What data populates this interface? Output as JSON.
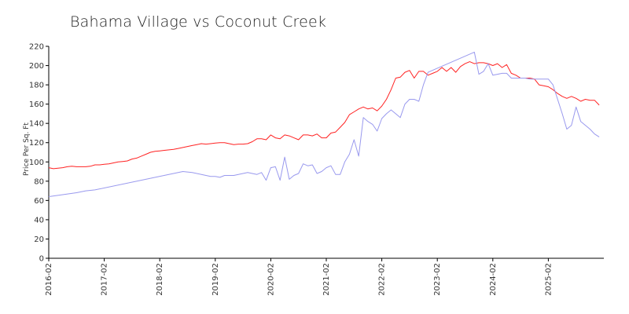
{
  "chart_data": {
    "type": "line",
    "title": "Bahama Village vs Coconut Creek",
    "ylabel": "Price Per Sq. Ft",
    "xlabel": "",
    "ylim": [
      0,
      220
    ],
    "yticks": [
      0,
      20,
      40,
      60,
      80,
      100,
      120,
      140,
      160,
      180,
      200,
      220
    ],
    "xlim": [
      "2016-02",
      "2026-02"
    ],
    "xticks": [
      "2016-02",
      "2017-02",
      "2018-02",
      "2019-02",
      "2020-02",
      "2021-02",
      "2022-02",
      "2023-02",
      "2024-02",
      "2025-02"
    ],
    "grid": false,
    "series": [
      {
        "color": "#ff2222",
        "points": [
          [
            "2016-02",
            94
          ],
          [
            "2016-03",
            93
          ],
          [
            "2016-04",
            93.5
          ],
          [
            "2016-05",
            94
          ],
          [
            "2016-06",
            95
          ],
          [
            "2016-07",
            95.5
          ],
          [
            "2016-08",
            95
          ],
          [
            "2016-09",
            95
          ],
          [
            "2016-10",
            95
          ],
          [
            "2016-11",
            95.5
          ],
          [
            "2016-12",
            97
          ],
          [
            "2017-01",
            97
          ],
          [
            "2017-02",
            97.5
          ],
          [
            "2017-03",
            98
          ],
          [
            "2017-04",
            99
          ],
          [
            "2017-05",
            100
          ],
          [
            "2017-06",
            100.5
          ],
          [
            "2017-07",
            101
          ],
          [
            "2017-08",
            103
          ],
          [
            "2017-09",
            104
          ],
          [
            "2017-10",
            106
          ],
          [
            "2017-11",
            108
          ],
          [
            "2017-12",
            110
          ],
          [
            "2018-01",
            111
          ],
          [
            "2018-02",
            111.5
          ],
          [
            "2018-03",
            112
          ],
          [
            "2018-04",
            112.5
          ],
          [
            "2018-05",
            113
          ],
          [
            "2018-06",
            114
          ],
          [
            "2018-07",
            115
          ],
          [
            "2018-08",
            116
          ],
          [
            "2018-09",
            117
          ],
          [
            "2018-10",
            118
          ],
          [
            "2018-11",
            119
          ],
          [
            "2018-12",
            118.5
          ],
          [
            "2019-01",
            119
          ],
          [
            "2019-02",
            119.5
          ],
          [
            "2019-03",
            120
          ],
          [
            "2019-04",
            120
          ],
          [
            "2019-05",
            119
          ],
          [
            "2019-06",
            118
          ],
          [
            "2019-07",
            118.5
          ],
          [
            "2019-08",
            118.5
          ],
          [
            "2019-09",
            119
          ],
          [
            "2019-10",
            121
          ],
          [
            "2019-11",
            124
          ],
          [
            "2019-12",
            124
          ],
          [
            "2020-01",
            123
          ],
          [
            "2020-02",
            128
          ],
          [
            "2020-03",
            125
          ],
          [
            "2020-04",
            124
          ],
          [
            "2020-05",
            128
          ],
          [
            "2020-06",
            127
          ],
          [
            "2020-07",
            125
          ],
          [
            "2020-08",
            123
          ],
          [
            "2020-09",
            128
          ],
          [
            "2020-10",
            128
          ],
          [
            "2020-11",
            127
          ],
          [
            "2020-12",
            129
          ],
          [
            "2021-01",
            125
          ],
          [
            "2021-02",
            125
          ],
          [
            "2021-03",
            130
          ],
          [
            "2021-04",
            131
          ],
          [
            "2021-05",
            136
          ],
          [
            "2021-06",
            141
          ],
          [
            "2021-07",
            149
          ],
          [
            "2021-08",
            152
          ],
          [
            "2021-09",
            155
          ],
          [
            "2021-10",
            157
          ],
          [
            "2021-11",
            155
          ],
          [
            "2021-12",
            156
          ],
          [
            "2022-01",
            153
          ],
          [
            "2022-02",
            158
          ],
          [
            "2022-03",
            165
          ],
          [
            "2022-04",
            175
          ],
          [
            "2022-05",
            187
          ],
          [
            "2022-06",
            188
          ],
          [
            "2022-07",
            193
          ],
          [
            "2022-08",
            195
          ],
          [
            "2022-09",
            187
          ],
          [
            "2022-10",
            194
          ],
          [
            "2022-11",
            194
          ],
          [
            "2022-12",
            190
          ],
          [
            "2023-01",
            192
          ],
          [
            "2023-02",
            194
          ],
          [
            "2023-03",
            198
          ],
          [
            "2023-04",
            194
          ],
          [
            "2023-05",
            198
          ],
          [
            "2023-06",
            193
          ],
          [
            "2023-07",
            199
          ],
          [
            "2023-08",
            202
          ],
          [
            "2023-09",
            204
          ],
          [
            "2023-10",
            202
          ],
          [
            "2023-11",
            203
          ],
          [
            "2023-12",
            203
          ],
          [
            "2024-01",
            202
          ],
          [
            "2024-02",
            200
          ],
          [
            "2024-03",
            202
          ],
          [
            "2024-04",
            198
          ],
          [
            "2024-05",
            201
          ],
          [
            "2024-06",
            192
          ],
          [
            "2024-07",
            190
          ],
          [
            "2024-08",
            187
          ],
          [
            "2024-09",
            187
          ],
          [
            "2024-10",
            187
          ],
          [
            "2024-11",
            186
          ],
          [
            "2024-12",
            180
          ],
          [
            "2025-01",
            179
          ],
          [
            "2025-02",
            178
          ],
          [
            "2025-03",
            175
          ],
          [
            "2025-04",
            171
          ],
          [
            "2025-05",
            168
          ],
          [
            "2025-06",
            166
          ],
          [
            "2025-07",
            168
          ],
          [
            "2025-08",
            166
          ],
          [
            "2025-09",
            163
          ],
          [
            "2025-10",
            165
          ],
          [
            "2025-11",
            164
          ],
          [
            "2025-12",
            164
          ],
          [
            "2026-01",
            159
          ]
        ]
      },
      {
        "color": "#9999ee",
        "points": [
          [
            "2016-02",
            64
          ],
          [
            "2016-05",
            66
          ],
          [
            "2016-08",
            68
          ],
          [
            "2016-10",
            70
          ],
          [
            "2016-12",
            71
          ],
          [
            "2018-07",
            90
          ],
          [
            "2018-09",
            89
          ],
          [
            "2018-11",
            87
          ],
          [
            "2019-01",
            85
          ],
          [
            "2019-02",
            85
          ],
          [
            "2019-03",
            84
          ],
          [
            "2019-04",
            86
          ],
          [
            "2019-05",
            86
          ],
          [
            "2019-06",
            86
          ],
          [
            "2019-09",
            89
          ],
          [
            "2019-11",
            87
          ],
          [
            "2019-12",
            89
          ],
          [
            "2020-01",
            81
          ],
          [
            "2020-02",
            94
          ],
          [
            "2020-03",
            95
          ],
          [
            "2020-04",
            81
          ],
          [
            "2020-05",
            105
          ],
          [
            "2020-06",
            82
          ],
          [
            "2020-07",
            86
          ],
          [
            "2020-08",
            88
          ],
          [
            "2020-09",
            98
          ],
          [
            "2020-10",
            96
          ],
          [
            "2020-11",
            97
          ],
          [
            "2020-12",
            88
          ],
          [
            "2021-01",
            90
          ],
          [
            "2021-02",
            94
          ],
          [
            "2021-03",
            96
          ],
          [
            "2021-04",
            87
          ],
          [
            "2021-05",
            87
          ],
          [
            "2021-06",
            100
          ],
          [
            "2021-07",
            108
          ],
          [
            "2021-08",
            123
          ],
          [
            "2021-09",
            106
          ],
          [
            "2021-10",
            146
          ],
          [
            "2021-11",
            142
          ],
          [
            "2021-12",
            139
          ],
          [
            "2022-01",
            132
          ],
          [
            "2022-02",
            145
          ],
          [
            "2022-03",
            150
          ],
          [
            "2022-04",
            154
          ],
          [
            "2022-05",
            150
          ],
          [
            "2022-06",
            146
          ],
          [
            "2022-07",
            160
          ],
          [
            "2022-08",
            165
          ],
          [
            "2022-09",
            165
          ],
          [
            "2022-10",
            163
          ],
          [
            "2022-11",
            180
          ],
          [
            "2022-12",
            193
          ],
          [
            "2023-10",
            214
          ],
          [
            "2023-11",
            191
          ],
          [
            "2023-12",
            194
          ],
          [
            "2024-01",
            202
          ],
          [
            "2024-02",
            190
          ],
          [
            "2024-03",
            191
          ],
          [
            "2024-04",
            192
          ],
          [
            "2024-05",
            192
          ],
          [
            "2024-06",
            187
          ],
          [
            "2024-07",
            187
          ],
          [
            "2024-08",
            187
          ],
          [
            "2024-09",
            187
          ],
          [
            "2024-10",
            186
          ],
          [
            "2024-11",
            186
          ],
          [
            "2024-12",
            186
          ],
          [
            "2025-01",
            186
          ],
          [
            "2025-02",
            186
          ],
          [
            "2025-03",
            180
          ],
          [
            "2025-04",
            165
          ],
          [
            "2025-05",
            150
          ],
          [
            "2025-06",
            134
          ],
          [
            "2025-07",
            138
          ],
          [
            "2025-08",
            157
          ],
          [
            "2025-09",
            142
          ],
          [
            "2025-10",
            138
          ],
          [
            "2025-11",
            134
          ],
          [
            "2025-12",
            129
          ],
          [
            "2026-01",
            126
          ]
        ]
      }
    ]
  }
}
